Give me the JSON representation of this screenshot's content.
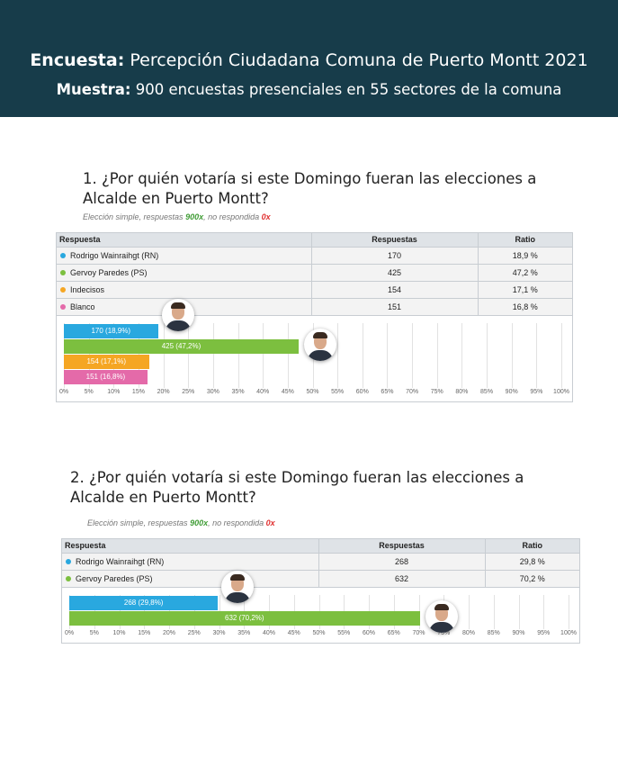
{
  "header": {
    "l1_bold": "Encuesta:",
    "l1_text": "Percepción Ciudadana Comuna de Puerto Montt 2021",
    "l2_bold": "Muestra:",
    "l2_text": "900 encuestas presenciales en 55 sectores de la comuna"
  },
  "colors": {
    "blue": "#29a8df",
    "green": "#7cbf3f",
    "orange": "#f5a623",
    "pink": "#e46aa9"
  },
  "columns": [
    "Respuesta",
    "Respuestas",
    "Ratio"
  ],
  "chart_data": [
    {
      "type": "bar",
      "title": "1. ¿Por quién votaría si este Domingo fueran las elecciones a Alcalde en Puerto Montt?",
      "subtitle": {
        "pre": "Elección simple, respuestas ",
        "count": "900x",
        "mid": ", no respondida ",
        "none": "0x"
      },
      "rows": [
        {
          "name": "Rodrigo Wainraihgt (RN)",
          "count": 170,
          "ratio": "18,9 %",
          "pct": 18.9,
          "label": "170 (18,9%)",
          "color": "#29a8df",
          "avatar": true
        },
        {
          "name": "Gervoy Paredes (PS)",
          "count": 425,
          "ratio": "47,2 %",
          "pct": 47.2,
          "label": "425 (47,2%)",
          "color": "#7cbf3f",
          "avatar": true
        },
        {
          "name": "Indecisos",
          "count": 154,
          "ratio": "17,1 %",
          "pct": 17.1,
          "label": "154 (17,1%)",
          "color": "#f5a623",
          "avatar": false
        },
        {
          "name": "Blanco",
          "count": 151,
          "ratio": "16,8 %",
          "pct": 16.8,
          "label": "151 (16,8%)",
          "color": "#e46aa9",
          "avatar": false
        }
      ],
      "xlim": [
        0,
        100
      ],
      "ticks": [
        "0%",
        "5%",
        "10%",
        "15%",
        "20%",
        "25%",
        "30%",
        "35%",
        "40%",
        "45%",
        "50%",
        "55%",
        "60%",
        "65%",
        "70%",
        "75%",
        "80%",
        "85%",
        "90%",
        "95%",
        "100%"
      ]
    },
    {
      "type": "bar",
      "title": "2. ¿Por quién votaría si este Domingo fueran las elecciones a Alcalde en Puerto Montt?",
      "subtitle": {
        "pre": "Elección simple, respuestas ",
        "count": "900x",
        "mid": ", no respondida ",
        "none": "0x"
      },
      "rows": [
        {
          "name": "Rodrigo Wainraihgt (RN)",
          "count": 268,
          "ratio": "29,8 %",
          "pct": 29.8,
          "label": "268 (29,8%)",
          "color": "#29a8df",
          "avatar": true
        },
        {
          "name": "Gervoy Paredes (PS)",
          "count": 632,
          "ratio": "70,2 %",
          "pct": 70.2,
          "label": "632 (70,2%)",
          "color": "#7cbf3f",
          "avatar": true
        }
      ],
      "xlim": [
        0,
        100
      ],
      "ticks": [
        "0%",
        "5%",
        "10%",
        "15%",
        "20%",
        "25%",
        "30%",
        "35%",
        "40%",
        "45%",
        "50%",
        "55%",
        "60%",
        "65%",
        "70%",
        "75%",
        "80%",
        "85%",
        "90%",
        "95%",
        "100%"
      ]
    }
  ]
}
